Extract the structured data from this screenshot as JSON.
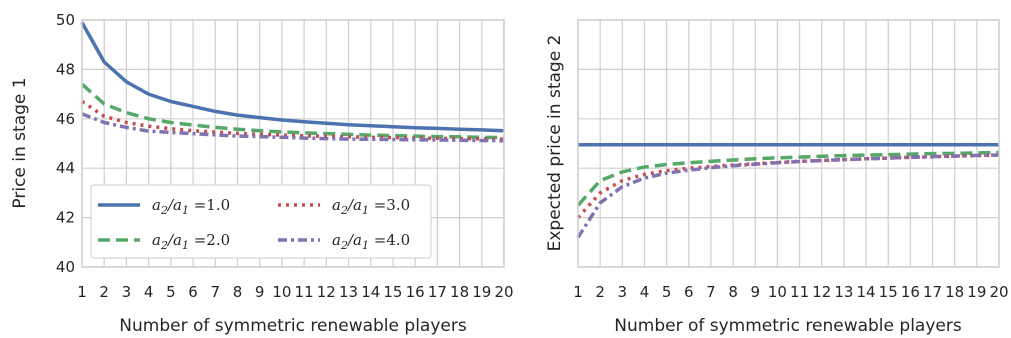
{
  "chart_data": [
    {
      "type": "line",
      "xlabel": "Number of symmetric renewable players",
      "ylabel": "Price in stage 1",
      "x": [
        1,
        2,
        3,
        4,
        5,
        6,
        7,
        8,
        9,
        10,
        11,
        12,
        13,
        14,
        15,
        16,
        17,
        18,
        19,
        20
      ],
      "xlim": [
        1,
        20
      ],
      "ylim": [
        40,
        50
      ],
      "yticks": [
        40,
        42,
        44,
        46,
        48,
        50
      ],
      "grid": true,
      "legend": {
        "placement": "lower-left",
        "columns": 2,
        "entries": [
          {
            "label_base": "a",
            "sub2": "2",
            "sub1": "1",
            "text": "a2/a1 =1.0"
          },
          {
            "label_base": "a",
            "sub2": "2",
            "sub1": "1",
            "text": "a2/a1 =3.0"
          },
          {
            "label_base": "a",
            "sub2": "2",
            "sub1": "1",
            "text": "a2/a1 =2.0"
          },
          {
            "label_base": "a",
            "sub2": "2",
            "sub1": "1",
            "text": "a2/a1 =4.0"
          }
        ]
      },
      "series": [
        {
          "name": "a2/a1 =1.0",
          "color": "#4c72b0",
          "style": "solid",
          "values": [
            49.9,
            48.3,
            47.5,
            47.0,
            46.7,
            46.5,
            46.3,
            46.15,
            46.05,
            45.95,
            45.88,
            45.82,
            45.76,
            45.72,
            45.68,
            45.64,
            45.61,
            45.58,
            45.55,
            45.52
          ]
        },
        {
          "name": "a2/a1 =2.0",
          "color": "#55a868",
          "style": "dashed",
          "values": [
            47.4,
            46.6,
            46.25,
            46.0,
            45.85,
            45.75,
            45.65,
            45.58,
            45.52,
            45.47,
            45.43,
            45.4,
            45.37,
            45.34,
            45.32,
            45.3,
            45.28,
            45.27,
            45.25,
            45.24
          ]
        },
        {
          "name": "a2/a1 =3.0",
          "color": "#c44e52",
          "style": "dotted",
          "values": [
            46.7,
            46.1,
            45.85,
            45.7,
            45.6,
            45.52,
            45.46,
            45.41,
            45.37,
            45.34,
            45.31,
            45.29,
            45.27,
            45.25,
            45.24,
            45.22,
            45.21,
            45.2,
            45.19,
            45.18
          ]
        },
        {
          "name": "a2/a1 =4.0",
          "color": "#8172b2",
          "style": "dashdot",
          "values": [
            46.2,
            45.85,
            45.65,
            45.5,
            45.45,
            45.4,
            45.35,
            45.3,
            45.28,
            45.25,
            45.22,
            45.2,
            45.18,
            45.17,
            45.16,
            45.15,
            45.14,
            45.13,
            45.12,
            45.11
          ]
        }
      ]
    },
    {
      "type": "line",
      "xlabel": "Number of symmetric renewable players",
      "ylabel": "Expected price in stage 2",
      "x": [
        1,
        2,
        3,
        4,
        5,
        6,
        7,
        8,
        9,
        10,
        11,
        12,
        13,
        14,
        15,
        16,
        17,
        18,
        19,
        20
      ],
      "xlim": [
        1,
        20
      ],
      "ylim": [
        0,
        10
      ],
      "yticks_labeled": false,
      "grid": true,
      "series": [
        {
          "name": "a2/a1 =1.0",
          "color": "#4c72b0",
          "style": "solid",
          "values": [
            4.95,
            4.95,
            4.95,
            4.95,
            4.95,
            4.95,
            4.95,
            4.95,
            4.95,
            4.95,
            4.95,
            4.95,
            4.95,
            4.95,
            4.95,
            4.95,
            4.95,
            4.95,
            4.95,
            4.95
          ]
        },
        {
          "name": "a2/a1 =2.0",
          "color": "#55a868",
          "style": "dashed",
          "values": [
            2.5,
            3.5,
            3.85,
            4.05,
            4.15,
            4.22,
            4.28,
            4.33,
            4.38,
            4.42,
            4.45,
            4.48,
            4.51,
            4.53,
            4.55,
            4.57,
            4.59,
            4.6,
            4.62,
            4.64
          ]
        },
        {
          "name": "a2/a1 =3.0",
          "color": "#c44e52",
          "style": "dotted",
          "values": [
            2.0,
            3.0,
            3.5,
            3.75,
            3.9,
            4.0,
            4.07,
            4.13,
            4.18,
            4.23,
            4.28,
            4.31,
            4.35,
            4.38,
            4.41,
            4.44,
            4.46,
            4.49,
            4.51,
            4.53
          ]
        },
        {
          "name": "a2/a1 =4.0",
          "color": "#8172b2",
          "style": "dashdot",
          "values": [
            1.2,
            2.6,
            3.25,
            3.6,
            3.8,
            3.92,
            4.02,
            4.1,
            4.16,
            4.22,
            4.27,
            4.31,
            4.35,
            4.38,
            4.41,
            4.44,
            4.47,
            4.49,
            4.52,
            4.54
          ]
        }
      ]
    }
  ]
}
